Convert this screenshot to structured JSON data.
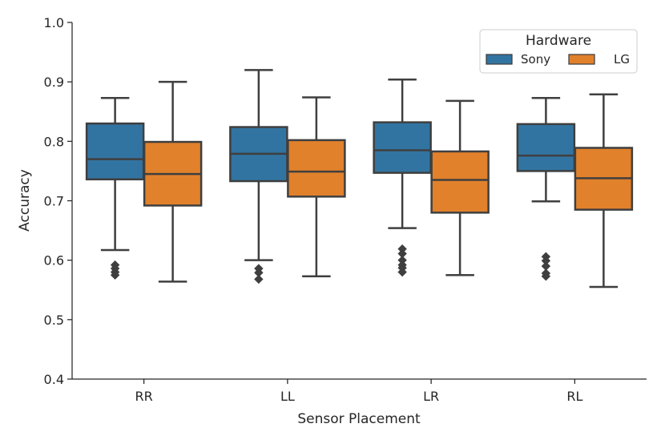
{
  "chart_data": {
    "type": "box",
    "xlabel": "Sensor Placement",
    "ylabel": "Accuracy",
    "ylim": [
      0.4,
      1.0
    ],
    "yticks": [
      0.4,
      0.5,
      0.6,
      0.7,
      0.8,
      0.9,
      1.0
    ],
    "ytick_labels": [
      "0.4",
      "0.5",
      "0.6",
      "0.7",
      "0.8",
      "0.9",
      "1.0"
    ],
    "categories": [
      "RR",
      "LL",
      "LR",
      "RL"
    ],
    "legend": {
      "title": "Hardware",
      "position": "top-right"
    },
    "series": [
      {
        "name": "Sony",
        "color": "#3274a1",
        "boxes": [
          {
            "whisker_low": 0.617,
            "q1": 0.736,
            "median": 0.77,
            "q3": 0.83,
            "whisker_high": 0.873,
            "outliers": [
              0.592,
              0.586,
              0.58,
              0.575
            ]
          },
          {
            "whisker_low": 0.6,
            "q1": 0.733,
            "median": 0.779,
            "q3": 0.824,
            "whisker_high": 0.92,
            "outliers": [
              0.586,
              0.579,
              0.568
            ]
          },
          {
            "whisker_low": 0.654,
            "q1": 0.747,
            "median": 0.785,
            "q3": 0.832,
            "whisker_high": 0.904,
            "outliers": [
              0.619,
              0.611,
              0.6,
              0.592,
              0.587,
              0.58
            ]
          },
          {
            "whisker_low": 0.699,
            "q1": 0.75,
            "median": 0.776,
            "q3": 0.829,
            "whisker_high": 0.873,
            "outliers": [
              0.606,
              0.599,
              0.59,
              0.578,
              0.573
            ]
          }
        ]
      },
      {
        "name": "LG",
        "color": "#e1812c",
        "boxes": [
          {
            "whisker_low": 0.564,
            "q1": 0.692,
            "median": 0.745,
            "q3": 0.799,
            "whisker_high": 0.9,
            "outliers": []
          },
          {
            "whisker_low": 0.573,
            "q1": 0.707,
            "median": 0.749,
            "q3": 0.802,
            "whisker_high": 0.874,
            "outliers": []
          },
          {
            "whisker_low": 0.575,
            "q1": 0.68,
            "median": 0.735,
            "q3": 0.783,
            "whisker_high": 0.868,
            "outliers": []
          },
          {
            "whisker_low": 0.555,
            "q1": 0.685,
            "median": 0.738,
            "q3": 0.789,
            "whisker_high": 0.879,
            "outliers": []
          }
        ]
      }
    ]
  }
}
